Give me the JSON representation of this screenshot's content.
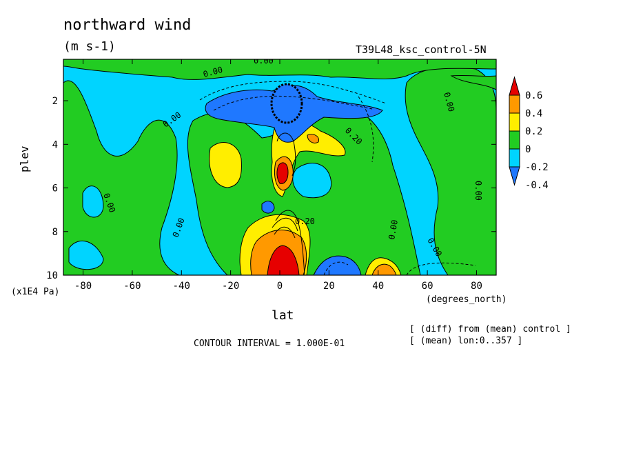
{
  "chart_data": {
    "type": "heatmap",
    "title": "northward wind",
    "units": "(m s-1)",
    "run_label": "T39L48_ksc_control-5N",
    "xlabel": "lat",
    "xunit": "(degrees_north)",
    "ylabel": "plev",
    "yunit": "(x1E4 Pa)",
    "xlim": [
      -88,
      88
    ],
    "ylim": [
      0.1,
      10
    ],
    "y_inverted": true,
    "x_ticks": [
      "-80",
      "-60",
      "-40",
      "-20",
      "0",
      "20",
      "40",
      "60",
      "80"
    ],
    "y_ticks": [
      "2",
      "4",
      "6",
      "8",
      "10"
    ],
    "colorbar": {
      "labels": [
        "0.6",
        "0.4",
        "0.2",
        "0",
        "-0.2",
        "-0.4"
      ],
      "levels": [
        {
          "min": 0.6,
          "color": "#e60000"
        },
        {
          "min": 0.4,
          "color": "#ff9900"
        },
        {
          "min": 0.2,
          "color": "#ffee00"
        },
        {
          "min": 0.0,
          "color": "#22cc22"
        },
        {
          "min": -0.2,
          "color": "#00d4ff"
        },
        {
          "min": -0.4,
          "color": "#1f78ff"
        }
      ]
    },
    "contour_labels": [
      "0.00",
      "0.00",
      "0.00",
      "0.00",
      "0.00",
      "0.00",
      "0.00",
      "0.00",
      "0.00",
      "0.20",
      "0.20"
    ],
    "features": [
      {
        "lat": 2,
        "plev": 2.3,
        "value": -0.6
      },
      {
        "lat": 0,
        "plev": 9.5,
        "value": 0.8
      },
      {
        "lat": -22,
        "plev": 4.8,
        "value": 0.3
      },
      {
        "lat": 12,
        "plev": 4.0,
        "value": 0.3
      },
      {
        "lat": 40,
        "plev": 9.6,
        "value": 0.4
      },
      {
        "lat": 25,
        "plev": 9.4,
        "value": -0.4
      },
      {
        "lat": 0,
        "plev": 5.2,
        "value": 0.6
      }
    ],
    "contour_interval": "CONTOUR INTERVAL = 1.000E-01",
    "notes": [
      "[ (diff) from (mean) control ]",
      "[ (mean) lon:0..357 ]"
    ]
  }
}
